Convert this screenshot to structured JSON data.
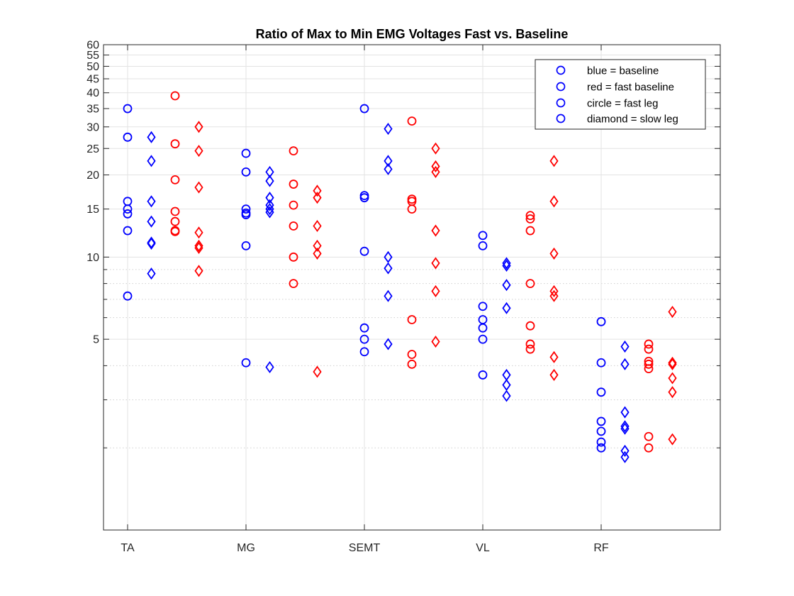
{
  "chart_data": {
    "type": "scatter",
    "title": "Ratio of Max to Min EMG Voltages Fast vs. Baseline",
    "xlabel": "",
    "ylabel": "",
    "y_scale": "log",
    "ylim": [
      1,
      60
    ],
    "y_major_ticks": [
      5,
      10,
      15,
      20,
      25,
      30,
      35,
      40,
      45,
      50,
      55,
      60
    ],
    "y_minor_ticks": [
      2,
      3,
      4,
      6,
      7,
      8,
      9
    ],
    "categories": [
      "TA",
      "MG",
      "SEMT",
      "VL",
      "RF"
    ],
    "grid": true,
    "legend_position": "top-right",
    "legend": [
      {
        "label": "blue = baseline"
      },
      {
        "label": "red = fast baseline"
      },
      {
        "label": "circle = fast leg"
      },
      {
        "label": "diamond = slow leg"
      }
    ],
    "colors": {
      "baseline": "#0000ff",
      "fast_baseline": "#ff0000"
    },
    "series": [
      {
        "name": "blue = baseline",
        "marker": "circle",
        "color": "#0000ff",
        "offset": 0,
        "values": [
          [
            35,
            27.5,
            16,
            15,
            14.4,
            12.5,
            7.2
          ],
          [
            24,
            20.5,
            15,
            14.5,
            14.3,
            11,
            4.1
          ],
          [
            35,
            16.8,
            16.5,
            10.5,
            5.5,
            5,
            4.5
          ],
          [
            12,
            11,
            6.6,
            5.9,
            5.5,
            5,
            3.7
          ],
          [
            5.8,
            4.1,
            3.2,
            2.5,
            2.3,
            2.1,
            2
          ]
        ]
      },
      {
        "name": "blue diamond",
        "marker": "diamond",
        "color": "#0000ff",
        "offset": 1,
        "values": [
          [
            27.5,
            22.5,
            16,
            13.5,
            11.3,
            11.2,
            8.7
          ],
          [
            20.5,
            19,
            16.5,
            15.5,
            15,
            14.6,
            3.95
          ],
          [
            29.5,
            22.5,
            21,
            10,
            9.1,
            7.2,
            4.8
          ],
          [
            9.5,
            9.3,
            7.9,
            6.5,
            3.7,
            3.4,
            3.1
          ],
          [
            4.7,
            4.05,
            2.7,
            2.4,
            2.35,
            1.95,
            1.85
          ]
        ]
      },
      {
        "name": "red circle",
        "marker": "circle",
        "color": "#ff0000",
        "offset": 2,
        "values": [
          [
            39,
            26,
            19.2,
            14.7,
            13.5,
            12.5,
            12.4
          ],
          [
            24.5,
            18.5,
            15.5,
            13,
            10,
            8
          ],
          [
            31.5,
            16.3,
            16,
            15,
            5.9,
            4.4,
            4.05
          ],
          [
            14.2,
            13.8,
            12.5,
            8,
            5.6,
            4.8,
            4.6
          ],
          [
            4.8,
            4.6,
            4.15,
            4.05,
            3.9,
            2.2,
            2
          ]
        ]
      },
      {
        "name": "red diamond",
        "marker": "diamond",
        "color": "#ff0000",
        "offset": 3,
        "values": [
          [
            30,
            24.5,
            18,
            12.3,
            11,
            10.8,
            8.9
          ],
          [
            17.5,
            16.5,
            13,
            11,
            10.3,
            3.8
          ],
          [
            25,
            21.5,
            20.5,
            12.5,
            9.5,
            7.5,
            4.9
          ],
          [
            22.5,
            16,
            10.3,
            7.5,
            7.2,
            4.3,
            3.7
          ],
          [
            6.3,
            4.1,
            4.05,
            3.6,
            3.2,
            2.15
          ]
        ]
      }
    ]
  }
}
